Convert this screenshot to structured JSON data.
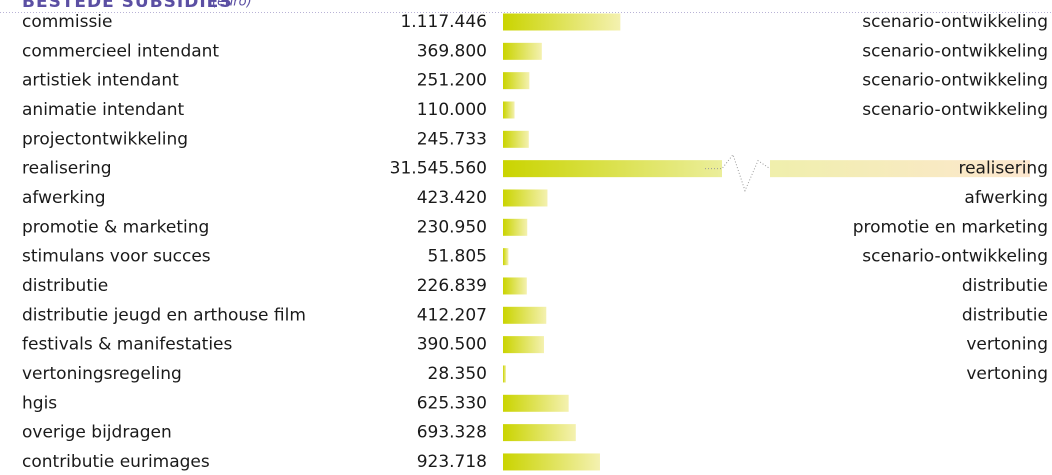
{
  "chart_data": {
    "type": "bar",
    "title": "BESTEDE SUBSIDIES",
    "subtitle": "(euro)",
    "categories": [
      "commissie",
      "commercieel intendant",
      "artistiek intendant",
      "animatie intendant",
      "projectontwikkeling",
      "realisering",
      "afwerking",
      "promotie & marketing",
      "stimulans voor succes",
      "distributie",
      "distributie jeugd en arthouse film",
      "festivals & manifestaties",
      "vertoningsregeling",
      "hgis",
      "overige bijdragen",
      "contributie eurimages"
    ],
    "values": [
      1117446,
      369800,
      251200,
      110000,
      245733,
      31545560,
      423420,
      230950,
      51805,
      226839,
      412207,
      390500,
      28350,
      625330,
      693328,
      923718
    ],
    "value_labels": [
      "1.117.446",
      "369.800",
      "251.200",
      "110.000",
      "245.733",
      "31.545.560",
      "423.420",
      "230.950",
      "51.805",
      "226.839",
      "412.207",
      "390.500",
      "28.350",
      "625.330",
      "693.328",
      "923.718"
    ],
    "groups": [
      "scenario-ontwikkeling",
      "scenario-ontwikkeling",
      "scenario-ontwikkeling",
      "scenario-ontwikkeling",
      null,
      "realisering",
      "afwerking",
      "promotie en marketing",
      "scenario-ontwikkeling",
      "distributie",
      "distributie",
      "vertoning",
      "vertoning",
      null,
      null,
      null
    ],
    "color": "#cad400"
  }
}
